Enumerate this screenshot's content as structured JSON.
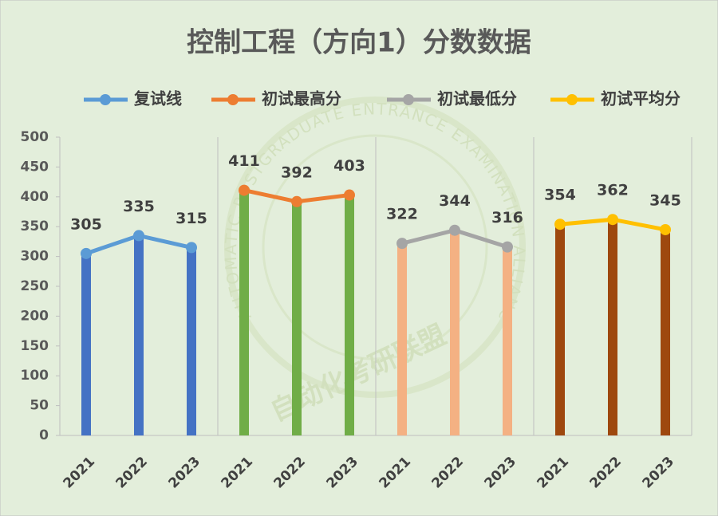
{
  "chart_data": {
    "type": "bar-line",
    "title": "控制工程（方向1）分数数据",
    "watermark": "AUTOMATIC POSTGRADUATE ENTRANCE EXAMINATION ALLIANCE",
    "watermark_cn": "自动化考研联盟",
    "categories": [
      "2021",
      "2022",
      "2023",
      "2021",
      "2022",
      "2023",
      "2021",
      "2022",
      "2023",
      "2021",
      "2022",
      "2023"
    ],
    "series": [
      {
        "name": "复试线",
        "color": "#5b9bd5",
        "bar_color": "#4472c4",
        "values": [
          305,
          335,
          315,
          null,
          null,
          null,
          null,
          null,
          null,
          null,
          null,
          null
        ]
      },
      {
        "name": "初试最高分",
        "color": "#ed7d31",
        "bar_color": "#70ad47",
        "values": [
          null,
          null,
          null,
          411,
          392,
          403,
          null,
          null,
          null,
          null,
          null,
          null
        ]
      },
      {
        "name": "初试最低分",
        "color": "#a5a5a5",
        "bar_color": "#f4b183",
        "values": [
          null,
          null,
          null,
          null,
          null,
          null,
          322,
          344,
          316,
          null,
          null,
          null
        ]
      },
      {
        "name": "初试平均分",
        "color": "#ffc000",
        "bar_color": "#9e480e",
        "values": [
          null,
          null,
          null,
          null,
          null,
          null,
          null,
          null,
          null,
          354,
          362,
          345
        ]
      }
    ],
    "ylim": [
      0,
      500
    ],
    "yticks": [
      0,
      50,
      100,
      150,
      200,
      250,
      300,
      350,
      400,
      450,
      500
    ],
    "grid": false,
    "legend": "top"
  }
}
